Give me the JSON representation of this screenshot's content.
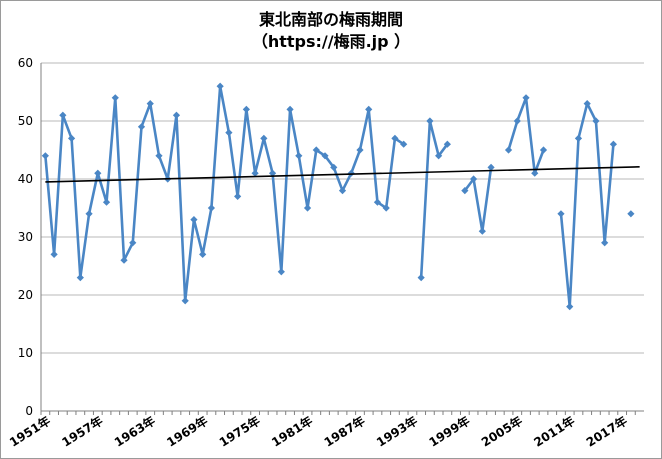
{
  "chart_data": {
    "type": "line",
    "title": "東北南部の梅雨期間",
    "subtitle": "（https://梅雨.jp ）",
    "xlabel": "",
    "ylabel": "",
    "ylim": [
      0,
      60
    ],
    "yticks": [
      0,
      10,
      20,
      30,
      40,
      50,
      60
    ],
    "xtick_labels": [
      {
        "year": 1951,
        "label": "1951年"
      },
      {
        "year": 1957,
        "label": "1957年"
      },
      {
        "year": 1963,
        "label": "1963年"
      },
      {
        "year": 1969,
        "label": "1969年"
      },
      {
        "year": 1975,
        "label": "1975年"
      },
      {
        "year": 1981,
        "label": "1981年"
      },
      {
        "year": 1987,
        "label": "1987年"
      },
      {
        "year": 1993,
        "label": "1993年"
      },
      {
        "year": 1999,
        "label": "1999年"
      },
      {
        "year": 2005,
        "label": "2005年"
      },
      {
        "year": 2011,
        "label": "2011年"
      },
      {
        "year": 2017,
        "label": "2017年"
      }
    ],
    "x": [
      1951,
      1952,
      1953,
      1954,
      1955,
      1956,
      1957,
      1958,
      1959,
      1960,
      1961,
      1962,
      1963,
      1964,
      1965,
      1966,
      1967,
      1968,
      1969,
      1970,
      1971,
      1972,
      1973,
      1974,
      1975,
      1976,
      1977,
      1978,
      1979,
      1980,
      1981,
      1982,
      1983,
      1984,
      1985,
      1986,
      1987,
      1988,
      1989,
      1990,
      1991,
      1992,
      1993,
      1994,
      1995,
      1996,
      1997,
      1998,
      1999,
      2000,
      2001,
      2002,
      2003,
      2004,
      2005,
      2006,
      2007,
      2008,
      2009,
      2010,
      2011,
      2012,
      2013,
      2014,
      2015,
      2016,
      2017,
      2018,
      2019
    ],
    "series": [
      {
        "values": [
          44,
          27,
          51,
          47,
          23,
          34,
          41,
          36,
          54,
          26,
          29,
          49,
          53,
          44,
          40,
          51,
          19,
          33,
          27,
          35,
          56,
          48,
          37,
          52,
          41,
          47,
          41,
          24,
          52,
          44,
          35,
          45,
          44,
          42,
          38,
          41,
          45,
          52,
          36,
          35,
          47,
          46,
          null,
          23,
          50,
          44,
          46,
          null,
          38,
          40,
          31,
          42,
          null,
          45,
          50,
          54,
          41,
          45,
          null,
          34,
          18,
          47,
          53,
          50,
          29,
          46,
          null,
          34,
          null
        ],
        "color": "#4a86c5"
      }
    ],
    "trendline": {
      "color": "#000000",
      "start": {
        "year": 1951,
        "value": 39.5
      },
      "end": {
        "year": 2019,
        "value": 42.1
      }
    },
    "grid": true,
    "legend": "none"
  }
}
